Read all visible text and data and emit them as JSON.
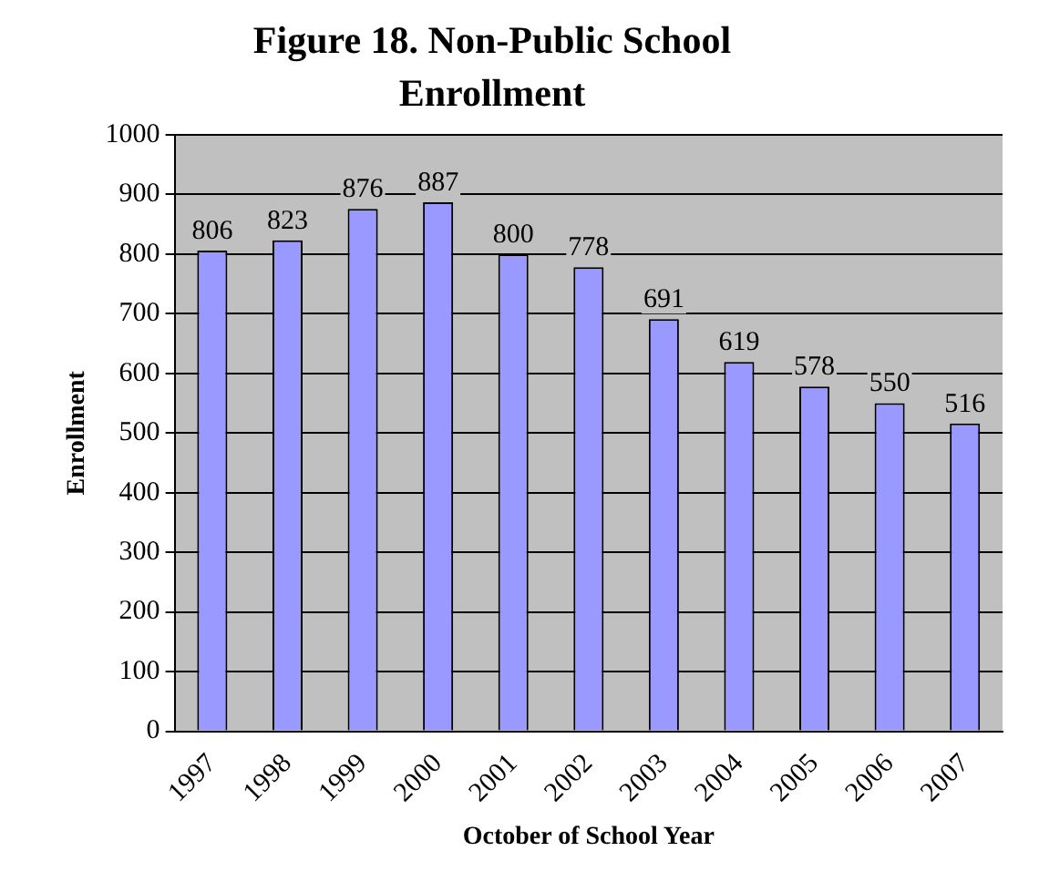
{
  "chart_data": {
    "type": "bar",
    "title": "Figure 18.  Non-Public School Enrollment",
    "xlabel": "October of School Year",
    "ylabel": "Enrollment",
    "categories": [
      "1997",
      "1998",
      "1999",
      "2000",
      "2001",
      "2002",
      "2003",
      "2004",
      "2005",
      "2006",
      "2007"
    ],
    "values": [
      806,
      823,
      876,
      887,
      800,
      778,
      691,
      619,
      578,
      550,
      516
    ],
    "color": "#9999ff",
    "ylim": [
      0,
      1000
    ],
    "yticks": [
      0,
      100,
      200,
      300,
      400,
      500,
      600,
      700,
      800,
      900,
      1000
    ],
    "grid": "y",
    "legend": false,
    "data_labels": true
  }
}
